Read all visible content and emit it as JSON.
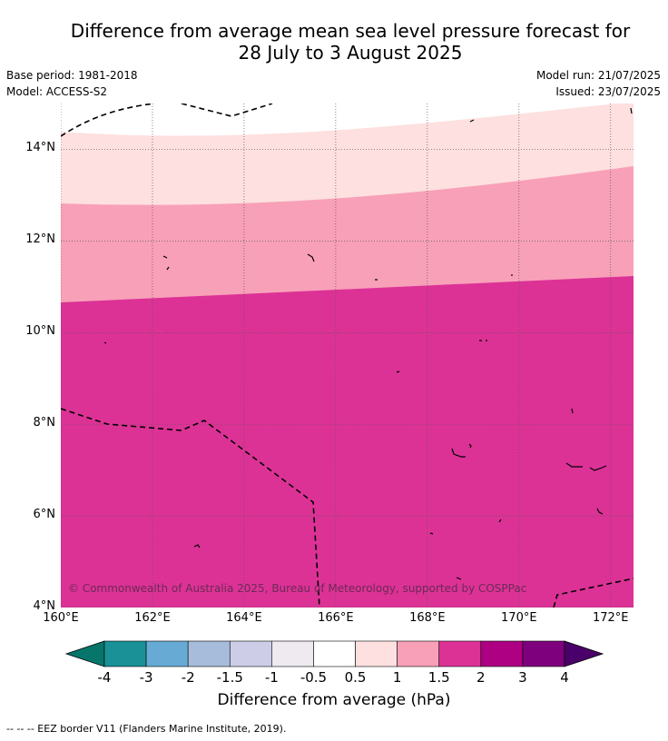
{
  "title": {
    "line1": "Difference from average mean sea level pressure forecast for",
    "line2": "28 July to 3 August 2025"
  },
  "meta": {
    "base_period": "Base period: 1981-2018",
    "model": "Model: ACCESS-S2",
    "model_run": "Model run: 21/07/2025",
    "issued": "Issued: 23/07/2025"
  },
  "map": {
    "lat_labels": [
      "14°N",
      "12°N",
      "10°N",
      "8°N",
      "6°N",
      "4°N"
    ],
    "lon_labels": [
      "160°E",
      "162°E",
      "164°E",
      "166°E",
      "168°E",
      "170°E",
      "172°E"
    ],
    "lat_values": [
      14,
      12,
      10,
      8,
      6,
      4
    ],
    "lon_values": [
      160,
      162,
      164,
      166,
      168,
      170,
      172
    ],
    "lat_range": [
      4,
      15
    ],
    "lon_range": [
      160,
      172.5
    ],
    "copyright": "© Commonwealth of Australia 2025, Bureau of Meteorology, supported by COSPPac",
    "band_colors": {
      "0.5-1": "#fde0df",
      "1-1.5": "#f8a0b8",
      "1.5-2": "#dc3296"
    },
    "contour_boundaries": [
      {
        "between": "0.5-1 / 1-1.5",
        "lat_at_160E": 12.75,
        "lat_at_172.5E": 13.6
      },
      {
        "between": "1-1.5 / 1.5-2",
        "lat_at_160E": 10.65,
        "lat_at_172.5E": 11.25
      }
    ]
  },
  "colorbar": {
    "labels": [
      "-4",
      "-3",
      "-2",
      "-1.5",
      "-1",
      "-0.5",
      "0.5",
      "1",
      "1.5",
      "2",
      "3",
      "4"
    ],
    "colors": [
      "#1a9097",
      "#67abd5",
      "#a7bcda",
      "#cdcde7",
      "#eeeaf0",
      "#ffffff",
      "#fde0df",
      "#f8a0b8",
      "#dc3296",
      "#ad0082",
      "#7e007c"
    ],
    "under_color": "#06766a",
    "over_color": "#4a006a",
    "title": "Difference from average (hPa)"
  },
  "footer": "--  --  -- EEZ border V11 (Flanders Marine Institute, 2019)."
}
